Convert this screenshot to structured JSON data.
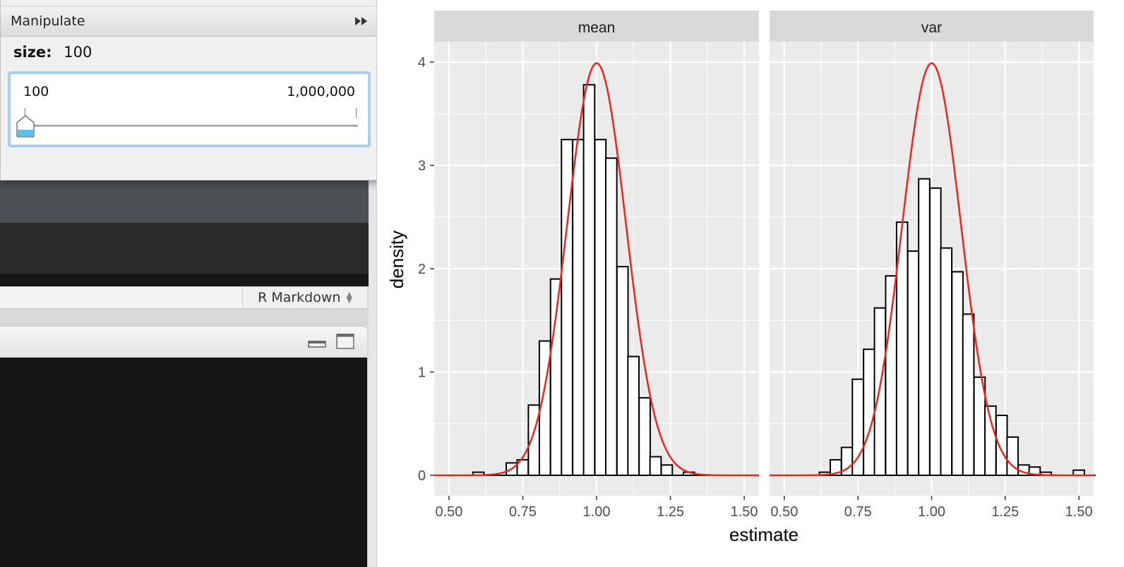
{
  "manipulate": {
    "title": "Manipulate",
    "size_label": "size:",
    "size_value": "100",
    "slider": {
      "min_label": "100",
      "max_label": "1,000,000",
      "position_fraction": 0.0
    }
  },
  "editor": {
    "document_type": "R Markdown"
  },
  "icons": {
    "collapse": "double-chevron-right-icon",
    "gear": "gear-icon",
    "minimize": "minimize-icon",
    "maximize": "maximize-icon"
  },
  "chart_data": {
    "type": "bar",
    "layout": "facet_wrap",
    "xlabel": "estimate",
    "ylabel": "density",
    "xlim": [
      0.45,
      1.55
    ],
    "ylim": [
      0,
      4.0
    ],
    "x_ticks": [
      "0.50",
      "0.75",
      "1.00",
      "1.25",
      "1.50"
    ],
    "x_tick_values": [
      0.5,
      0.75,
      1.0,
      1.25,
      1.5
    ],
    "y_ticks": [
      "0",
      "1",
      "2",
      "3",
      "4"
    ],
    "y_tick_values": [
      0,
      1,
      2,
      3,
      4
    ],
    "bin_width": 0.0375,
    "grid": true,
    "colors": {
      "panel_bg": "#ebebeb",
      "strip_bg": "#d9d9d9",
      "grid": "#ffffff",
      "bar_fill": "#ffffff",
      "bar_stroke": "#000000",
      "curve": "#e8281e"
    },
    "curve": {
      "type": "normal_density",
      "mean": 1.0,
      "sd": 0.1
    },
    "panels": [
      {
        "strip": "mean",
        "bin_left_edges": [
          0.581,
          0.619,
          0.656,
          0.694,
          0.731,
          0.769,
          0.806,
          0.844,
          0.881,
          0.919,
          0.956,
          0.994,
          1.031,
          1.069,
          1.106,
          1.144,
          1.181,
          1.219,
          1.256,
          1.294,
          1.331,
          1.369
        ],
        "densities": [
          0.03,
          0.0,
          0.0,
          0.12,
          0.15,
          0.68,
          1.3,
          1.9,
          3.25,
          3.25,
          3.78,
          3.25,
          3.07,
          2.02,
          1.15,
          0.75,
          0.18,
          0.1,
          0.0,
          0.03,
          0.0,
          0.0
        ]
      },
      {
        "strip": "var",
        "bin_left_edges": [
          0.619,
          0.656,
          0.694,
          0.731,
          0.769,
          0.806,
          0.844,
          0.881,
          0.919,
          0.956,
          0.994,
          1.031,
          1.069,
          1.106,
          1.144,
          1.181,
          1.219,
          1.256,
          1.294,
          1.331,
          1.369,
          1.406,
          1.444,
          1.481,
          1.519
        ],
        "densities": [
          0.03,
          0.15,
          0.27,
          0.93,
          1.22,
          1.62,
          1.93,
          2.45,
          2.17,
          2.87,
          2.78,
          2.2,
          1.97,
          1.56,
          0.95,
          0.67,
          0.58,
          0.37,
          0.1,
          0.08,
          0.03,
          0.0,
          0.0,
          0.05,
          0.0
        ]
      }
    ]
  }
}
